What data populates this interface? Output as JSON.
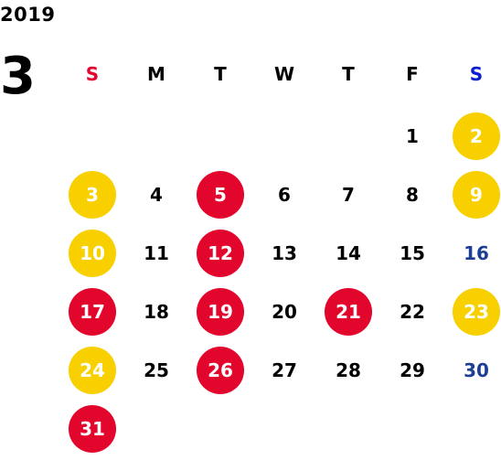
{
  "year": "2019",
  "month": "3",
  "weekdays": [
    {
      "label": "S",
      "color": "#e3062c"
    },
    {
      "label": "M",
      "color": "#000000"
    },
    {
      "label": "T",
      "color": "#000000"
    },
    {
      "label": "W",
      "color": "#000000"
    },
    {
      "label": "T",
      "color": "#000000"
    },
    {
      "label": "F",
      "color": "#000000"
    },
    {
      "label": "S",
      "color": "#0c1fd0"
    }
  ],
  "leading_blank_days": 5,
  "days": [
    {
      "label": "1",
      "style": "plain"
    },
    {
      "label": "2",
      "style": "yellow"
    },
    {
      "label": "3",
      "style": "yellow"
    },
    {
      "label": "4",
      "style": "plain"
    },
    {
      "label": "5",
      "style": "red"
    },
    {
      "label": "6",
      "style": "plain"
    },
    {
      "label": "7",
      "style": "plain"
    },
    {
      "label": "8",
      "style": "plain"
    },
    {
      "label": "9",
      "style": "yellow"
    },
    {
      "label": "10",
      "style": "yellow"
    },
    {
      "label": "11",
      "style": "plain"
    },
    {
      "label": "12",
      "style": "red"
    },
    {
      "label": "13",
      "style": "plain"
    },
    {
      "label": "14",
      "style": "plain"
    },
    {
      "label": "15",
      "style": "plain"
    },
    {
      "label": "16",
      "style": "blue"
    },
    {
      "label": "17",
      "style": "red"
    },
    {
      "label": "18",
      "style": "plain"
    },
    {
      "label": "19",
      "style": "red"
    },
    {
      "label": "20",
      "style": "plain"
    },
    {
      "label": "21",
      "style": "red"
    },
    {
      "label": "22",
      "style": "plain"
    },
    {
      "label": "23",
      "style": "yellow"
    },
    {
      "label": "24",
      "style": "yellow"
    },
    {
      "label": "25",
      "style": "plain"
    },
    {
      "label": "26",
      "style": "red"
    },
    {
      "label": "27",
      "style": "plain"
    },
    {
      "label": "28",
      "style": "plain"
    },
    {
      "label": "29",
      "style": "plain"
    },
    {
      "label": "30",
      "style": "blue"
    },
    {
      "label": "31",
      "style": "red"
    }
  ],
  "colors": {
    "red": "#e3062c",
    "yellow": "#f8d000",
    "blue": "#1c3f95",
    "text": "#000000"
  }
}
